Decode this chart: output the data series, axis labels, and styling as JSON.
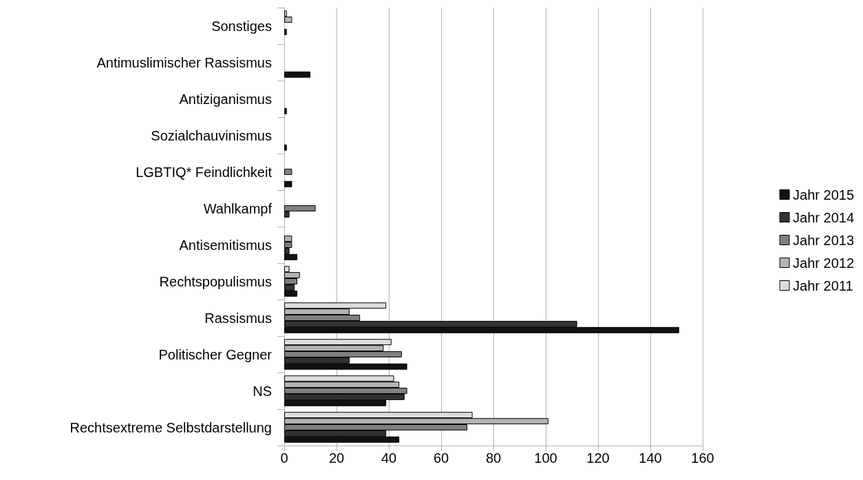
{
  "chart_data": {
    "type": "bar",
    "orientation": "horizontal",
    "categories": [
      "Sonstiges",
      "Antimuslimischer Rassismus",
      "Antiziganismus",
      "Sozialchauvinismus",
      "LGBTIQ* Feindlichkeit",
      "Wahlkampf",
      "Antisemitismus",
      "Rechtspopulismus",
      "Rassismus",
      "Politischer Gegner",
      "NS",
      "Rechtsextreme Selbstdarstellung"
    ],
    "series": [
      {
        "name": "Jahr 2011",
        "color": "#dddddd",
        "values": [
          1,
          null,
          null,
          null,
          null,
          null,
          null,
          2,
          39,
          41,
          42,
          72
        ]
      },
      {
        "name": "Jahr 2012",
        "color": "#b3b3b3",
        "values": [
          3,
          null,
          null,
          null,
          null,
          null,
          3,
          6,
          25,
          38,
          44,
          101
        ]
      },
      {
        "name": "Jahr 2013",
        "color": "#808080",
        "values": [
          null,
          null,
          null,
          null,
          3,
          12,
          3,
          5,
          29,
          45,
          47,
          70
        ]
      },
      {
        "name": "Jahr 2014",
        "color": "#333333",
        "values": [
          1,
          null,
          null,
          null,
          null,
          2,
          2,
          4,
          112,
          25,
          46,
          39
        ]
      },
      {
        "name": "Jahr 2015",
        "color": "#111111",
        "values": [
          null,
          10,
          1,
          1,
          3,
          null,
          5,
          5,
          151,
          47,
          39,
          44
        ]
      }
    ],
    "xlim": [
      0,
      160
    ],
    "xticks": [
      0,
      20,
      40,
      60,
      80,
      100,
      120,
      140,
      160
    ],
    "grid": "x",
    "legend": "right"
  }
}
